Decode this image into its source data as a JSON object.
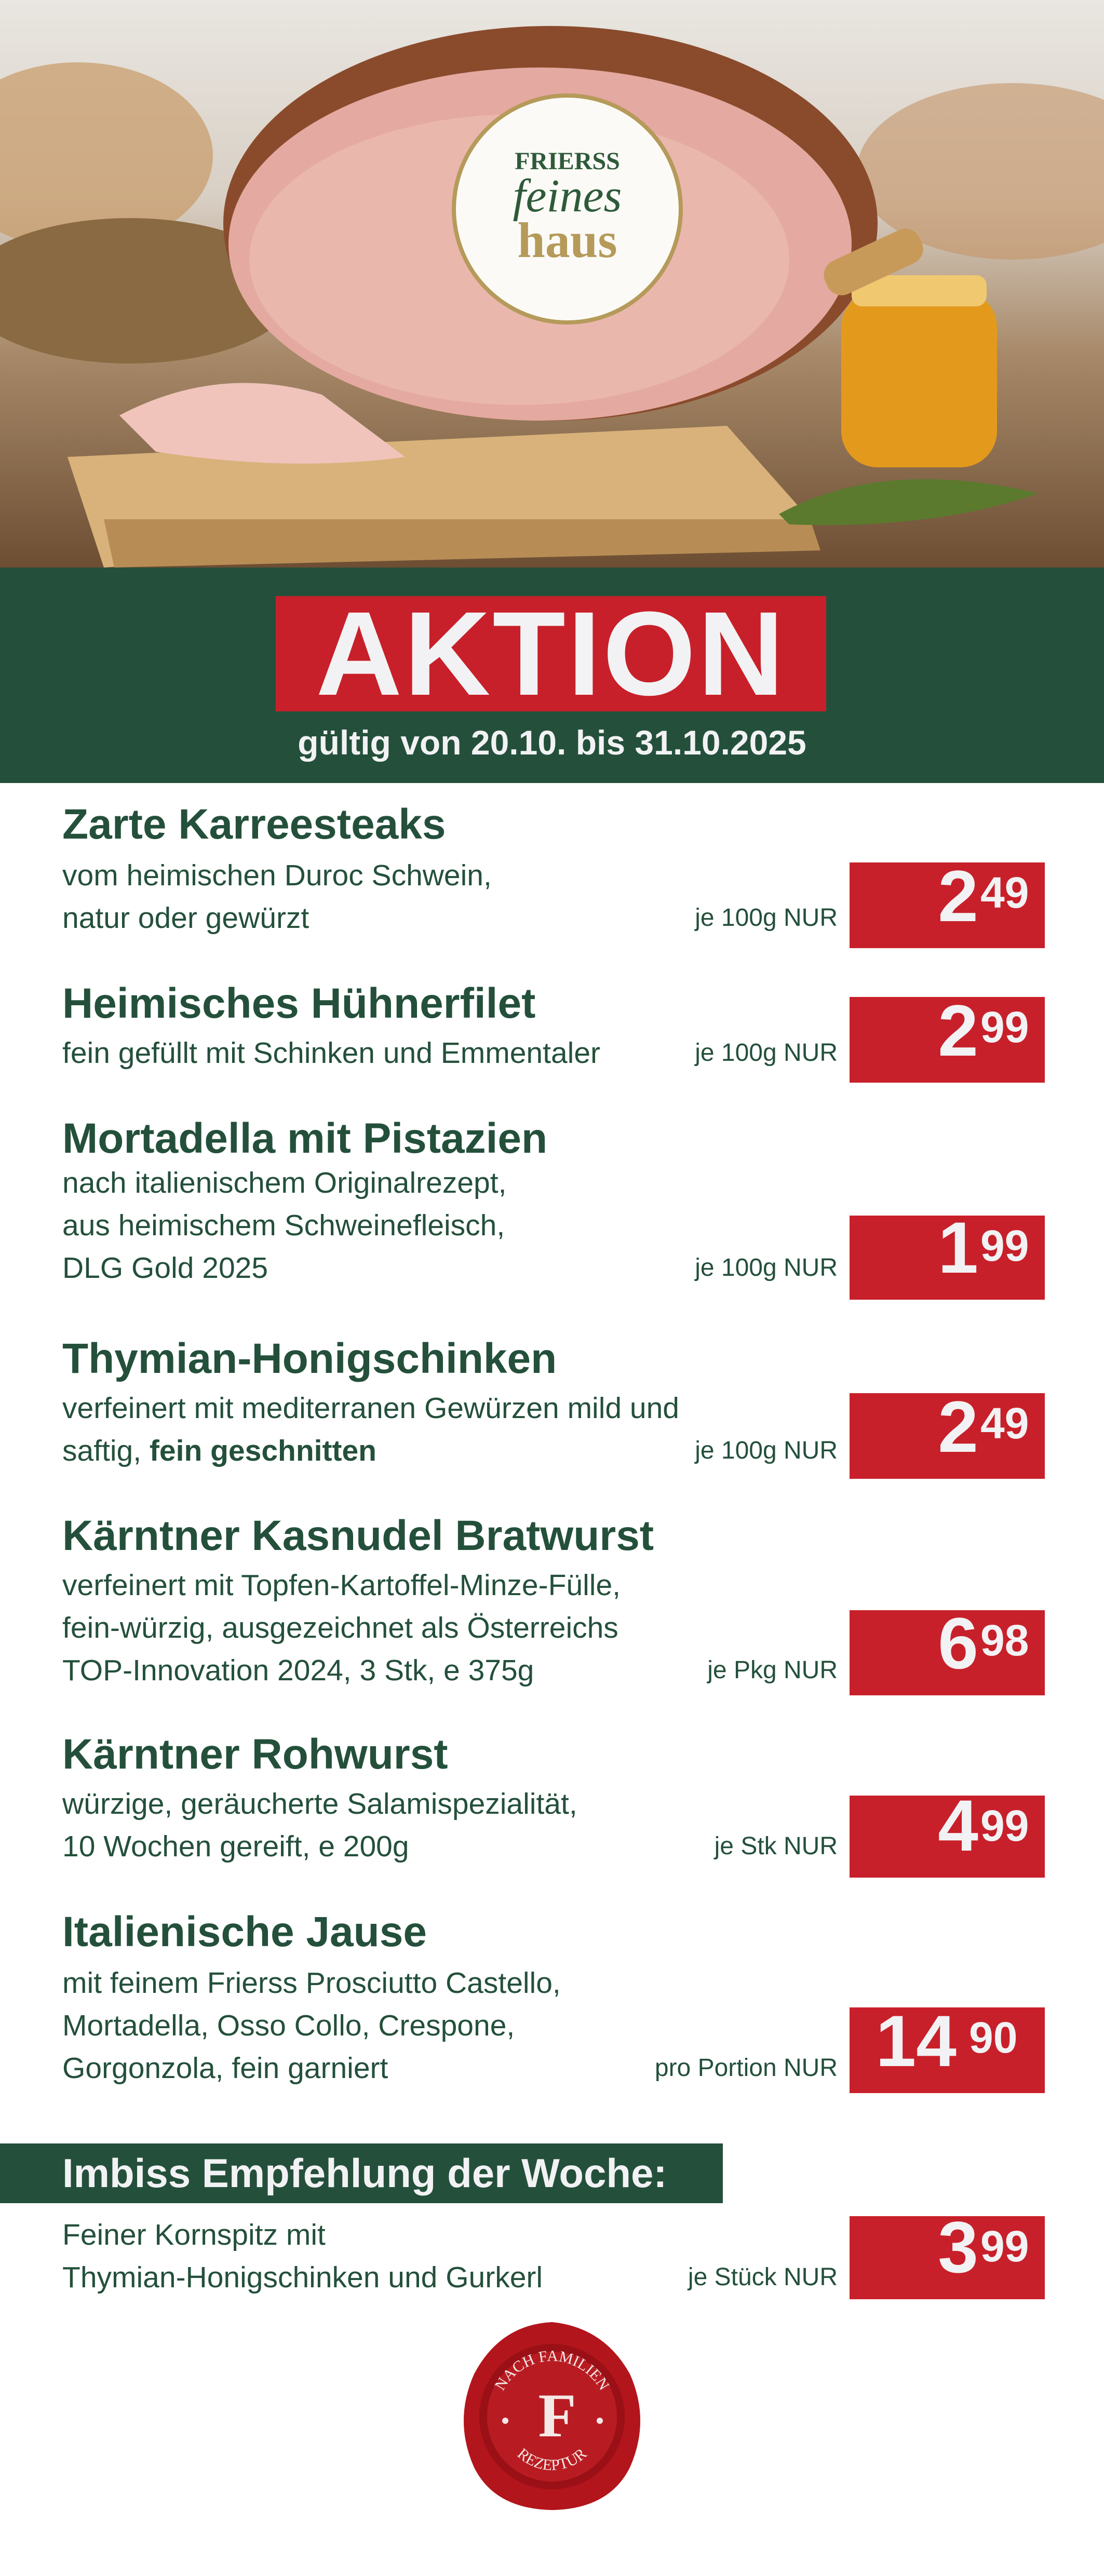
{
  "brand": {
    "line1": "FRIERSS",
    "line2": "feines",
    "line3": "haus"
  },
  "header": {
    "title": "AKTION",
    "validity": "gültig von 20.10. bis 31.10.2025"
  },
  "products": [
    {
      "title": "Zarte Karreesteaks",
      "desc": [
        {
          "text": "vom heimischen Duroc Schwein,"
        },
        {
          "text": "natur oder gewürzt"
        }
      ],
      "unit": "je 100g NUR",
      "price_main": "2",
      "price_cents": "49"
    },
    {
      "title": "Heimisches Hühnerfilet",
      "desc": [
        {
          "text": "fein gefüllt mit Schinken und Emmentaler"
        }
      ],
      "unit": "je 100g NUR",
      "price_main": "2",
      "price_cents": "99"
    },
    {
      "title": "Mortadella mit Pistazien",
      "desc": [
        {
          "text": "nach italienischem Originalrezept,"
        },
        {
          "text": "aus heimischem Schweinefleisch,"
        },
        {
          "text": "DLG Gold 2025"
        }
      ],
      "unit": "je 100g NUR",
      "price_main": "1",
      "price_cents": "99"
    },
    {
      "title": "Thymian-Honigschinken",
      "desc": [
        {
          "text": "verfeinert mit mediterranen Gewürzen mild und"
        },
        {
          "text": "saftig, ",
          "bold": "fein geschnitten"
        }
      ],
      "unit": "je 100g NUR",
      "price_main": "2",
      "price_cents": "49"
    },
    {
      "title": "Kärntner Kasnudel Bratwurst",
      "desc": [
        {
          "text": "verfeinert mit Topfen-Kartoffel-Minze-Fülle,"
        },
        {
          "text": "fein-würzig, ausgezeichnet als Österreichs"
        },
        {
          "text": "TOP-Innovation 2024, 3 Stk, e 375g"
        }
      ],
      "unit": "je Pkg NUR",
      "price_main": "6",
      "price_cents": "98"
    },
    {
      "title": "Kärntner Rohwurst",
      "desc": [
        {
          "text": "würzige, geräucherte Salamispezialität,"
        },
        {
          "text": "10 Wochen gereift, e 200g"
        }
      ],
      "unit": "je Stk NUR",
      "price_main": "4",
      "price_cents": "99"
    },
    {
      "title": "Italienische Jause",
      "desc": [
        {
          "text": "mit feinem Frierss Prosciutto Castello,"
        },
        {
          "text": "Mortadella, Osso Collo, Crespone,"
        },
        {
          "text": "Gorgonzola, fein garniert"
        }
      ],
      "unit": "pro Portion NUR",
      "price_main": "14",
      "price_cents": "90"
    }
  ],
  "snack": {
    "heading": "Imbiss Empfehlung der Woche:",
    "desc": [
      {
        "text": "Feiner Kornspitz mit"
      },
      {
        "text": "Thymian-Honigschinken und Gurkerl"
      }
    ],
    "unit": "je Stück NUR",
    "price_main": "3",
    "price_cents": "99"
  },
  "seal": {
    "top": "NACH FAMILIEN",
    "bottom": "REZEPTUR",
    "letter": "F"
  },
  "colors": {
    "green": "#24503b",
    "red": "#c8202a",
    "white": "#f2f2f4"
  }
}
